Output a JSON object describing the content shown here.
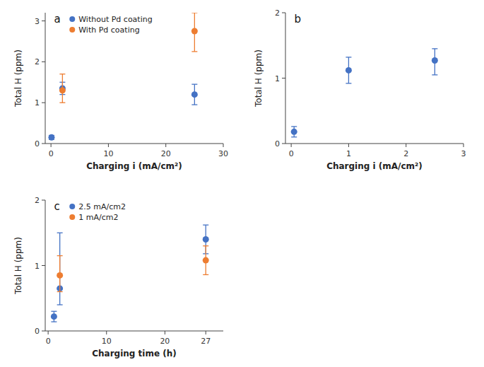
{
  "chart_data": [
    {
      "type": "scatter",
      "title": "a",
      "x_label": "Charging i (mA/cm²)",
      "y_label": "Total H (ppm)",
      "xlim": [
        -1,
        30
      ],
      "ylim": [
        0,
        3.2
      ],
      "xticks": [
        0,
        10,
        20,
        30
      ],
      "yticks": [
        0,
        1,
        2,
        3
      ],
      "grid": false,
      "legend": "upper left",
      "series": [
        {
          "name": "Without Pd coating",
          "color": "#4472C4",
          "x": [
            0.1,
            2,
            25
          ],
          "values": [
            0.15,
            1.35,
            1.2
          ],
          "error_lo": [
            0.05,
            0.15,
            0.25
          ],
          "error_hi": [
            0.05,
            0.15,
            0.25
          ]
        },
        {
          "name": "With Pd coating",
          "color": "#ED7D31",
          "x": [
            2,
            25
          ],
          "values": [
            1.3,
            2.75
          ],
          "error_lo": [
            0.3,
            0.5
          ],
          "error_hi": [
            0.4,
            0.45
          ]
        }
      ]
    },
    {
      "type": "scatter",
      "title": "b",
      "x_label": "Charging i (mA/cm²)",
      "y_label": "Total H (ppm)",
      "xlim": [
        -0.1,
        3.0
      ],
      "ylim": [
        0,
        2.0
      ],
      "xticks": [
        0,
        1,
        2,
        3
      ],
      "yticks": [
        0,
        1,
        2
      ],
      "grid": false,
      "series": [
        {
          "color": "#4472C4",
          "x": [
            0.05,
            1,
            2.5
          ],
          "values": [
            0.18,
            1.12,
            1.27
          ],
          "error_lo": [
            0.08,
            0.2,
            0.22
          ],
          "error_hi": [
            0.08,
            0.2,
            0.18
          ]
        }
      ]
    },
    {
      "type": "scatter",
      "title": "c",
      "x_label": "Charging time (h)",
      "y_label": "Total H (ppm)",
      "xlim": [
        -0.5,
        30
      ],
      "ylim": [
        0,
        2.0
      ],
      "xticks": [
        0,
        10,
        20,
        27
      ],
      "yticks": [
        0,
        1,
        2
      ],
      "grid": false,
      "legend": "upper left",
      "series": [
        {
          "name": "2.5 mA/cm2",
          "color": "#4472C4",
          "x": [
            1,
            2,
            27
          ],
          "values": [
            0.22,
            0.65,
            1.4
          ],
          "error_lo": [
            0.08,
            0.25,
            0.22
          ],
          "error_hi": [
            0.08,
            0.85,
            0.22
          ]
        },
        {
          "name": "1 mA/cm2",
          "color": "#ED7D31",
          "x": [
            2,
            27
          ],
          "values": [
            0.85,
            1.08
          ],
          "error_lo": [
            0.25,
            0.22
          ],
          "error_hi": [
            0.3,
            0.22
          ]
        }
      ]
    }
  ]
}
